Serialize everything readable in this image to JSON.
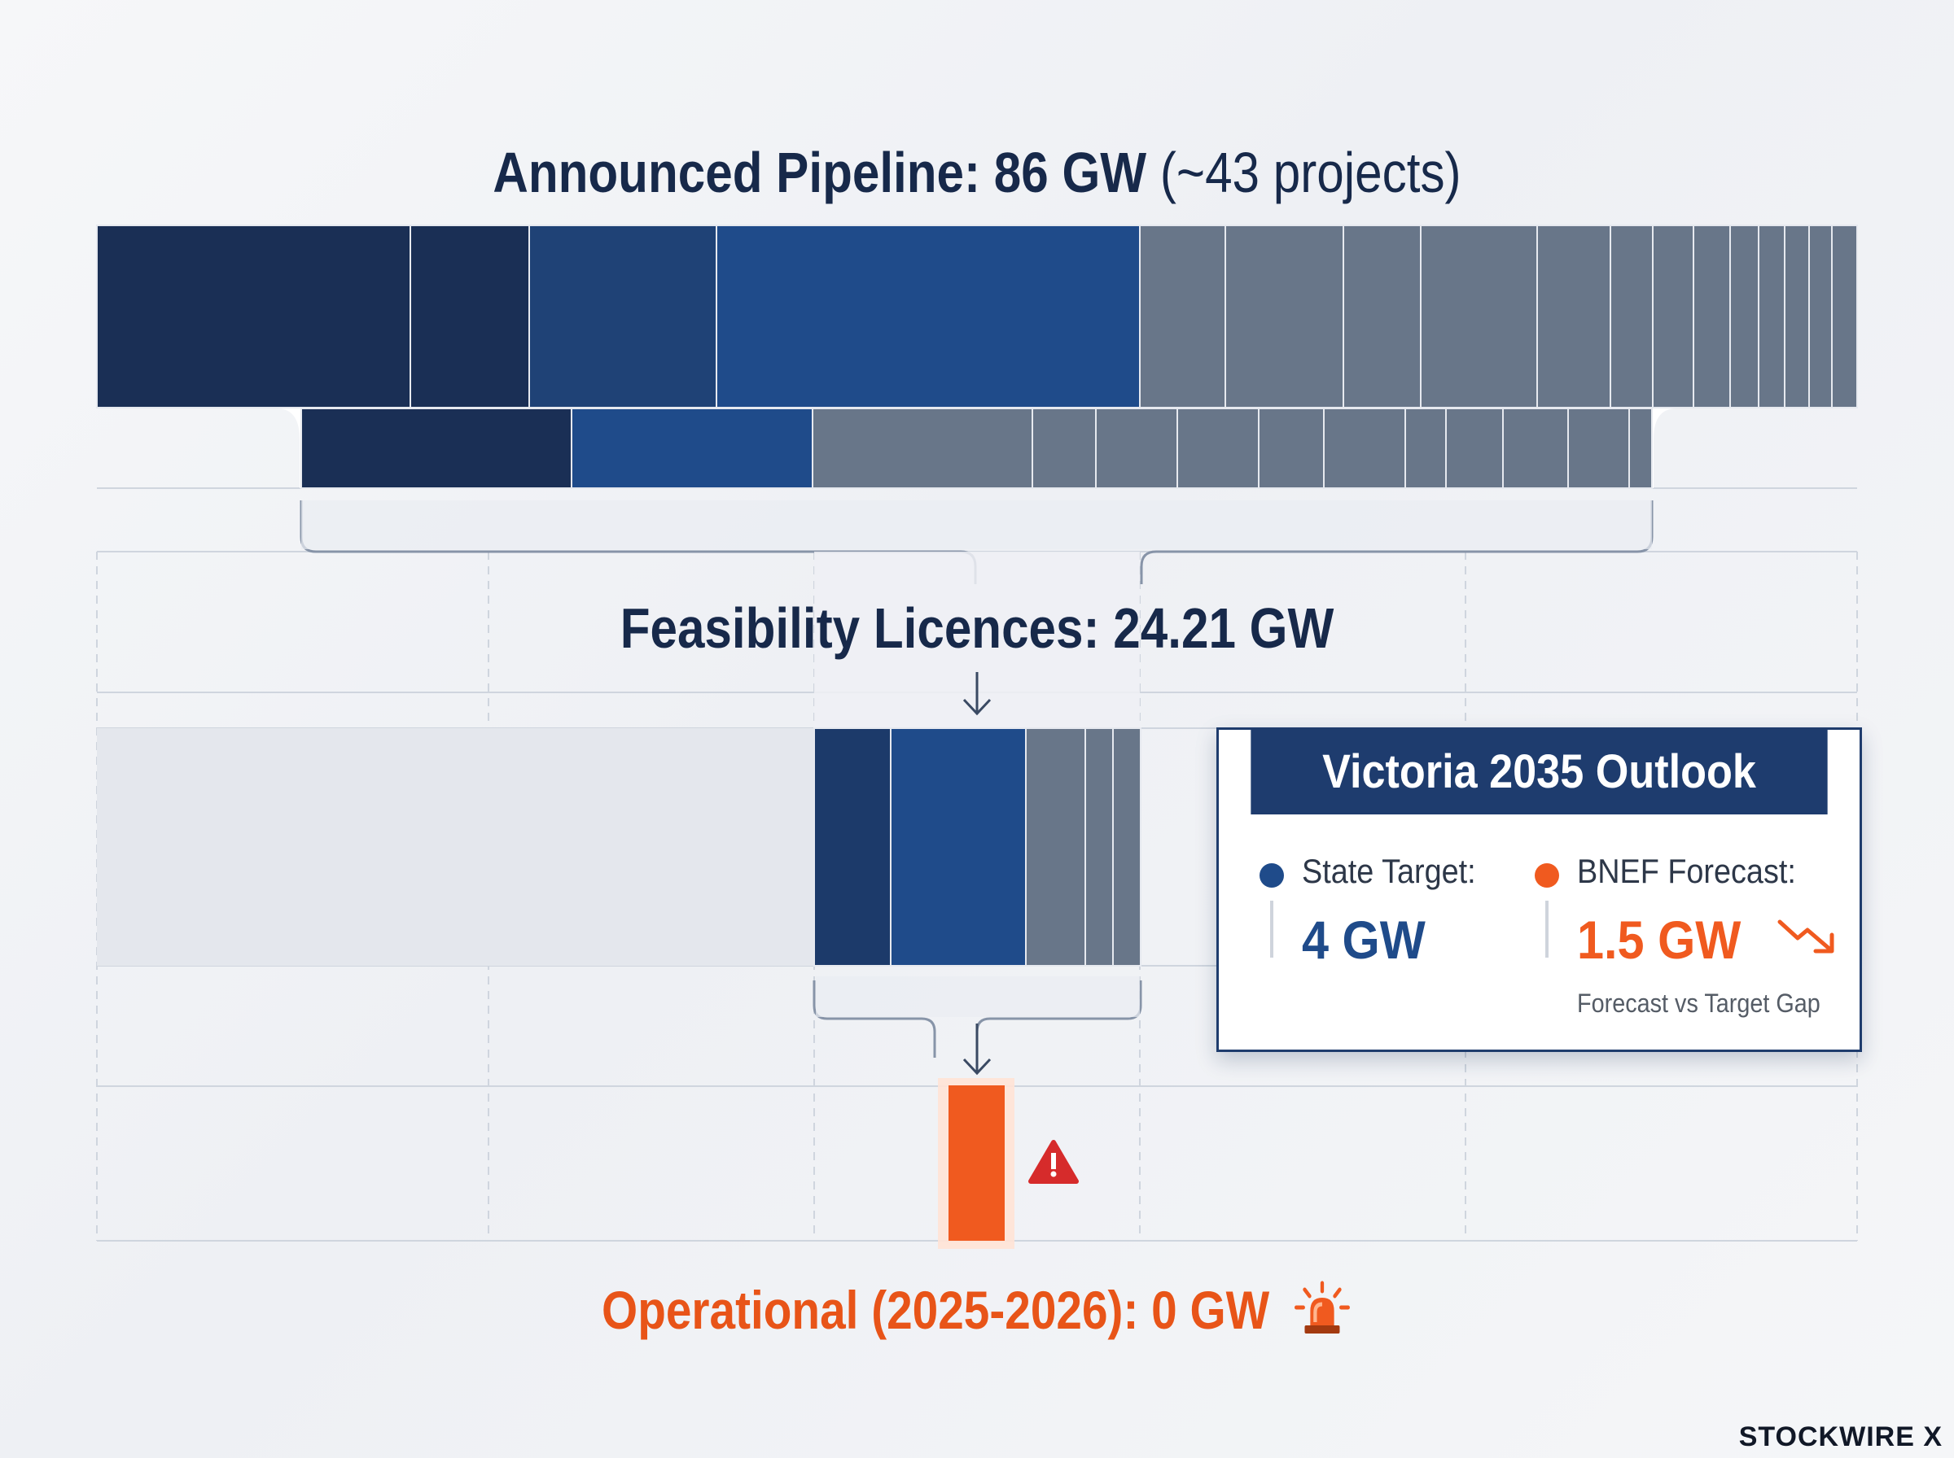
{
  "titles": {
    "pipeline_bold": "Announced Pipeline: 86 GW",
    "pipeline_light": "(~43 projects)",
    "feasibility": "Feasibility Licences: 24.21 GW",
    "operational": "Operational (2025-2026): 0 GW"
  },
  "outlook": {
    "title": "Victoria 2035 Outlook",
    "state_label": "State Target:",
    "state_value": "4 GW",
    "bnef_label": "BNEF Forecast:",
    "bnef_value": "1.5 GW",
    "gap_note": "Forecast vs Target Gap"
  },
  "icons": {
    "warning": "warning-triangle-icon",
    "siren": "siren-alarm-icon",
    "trend": "trend-down-icon"
  },
  "colors": {
    "navy": "#17294a",
    "dark_blue": "#1a2f55",
    "mid_blue": "#1f4b8a",
    "grey_segment": "#687689",
    "orange": "#f05a1f"
  },
  "brand": "STOCKWIRE X",
  "chart_data": {
    "type": "funnel",
    "stages": [
      {
        "name": "Announced Pipeline",
        "value": 86,
        "unit": "GW",
        "note": "~43 projects"
      },
      {
        "name": "Feasibility Licences",
        "value": 24.21,
        "unit": "GW"
      },
      {
        "name": "Operational (2025-2026)",
        "value": 0,
        "unit": "GW"
      }
    ],
    "outlook_2035": {
      "state_target_gw": 4,
      "bnef_forecast_gw": 1.5
    }
  }
}
